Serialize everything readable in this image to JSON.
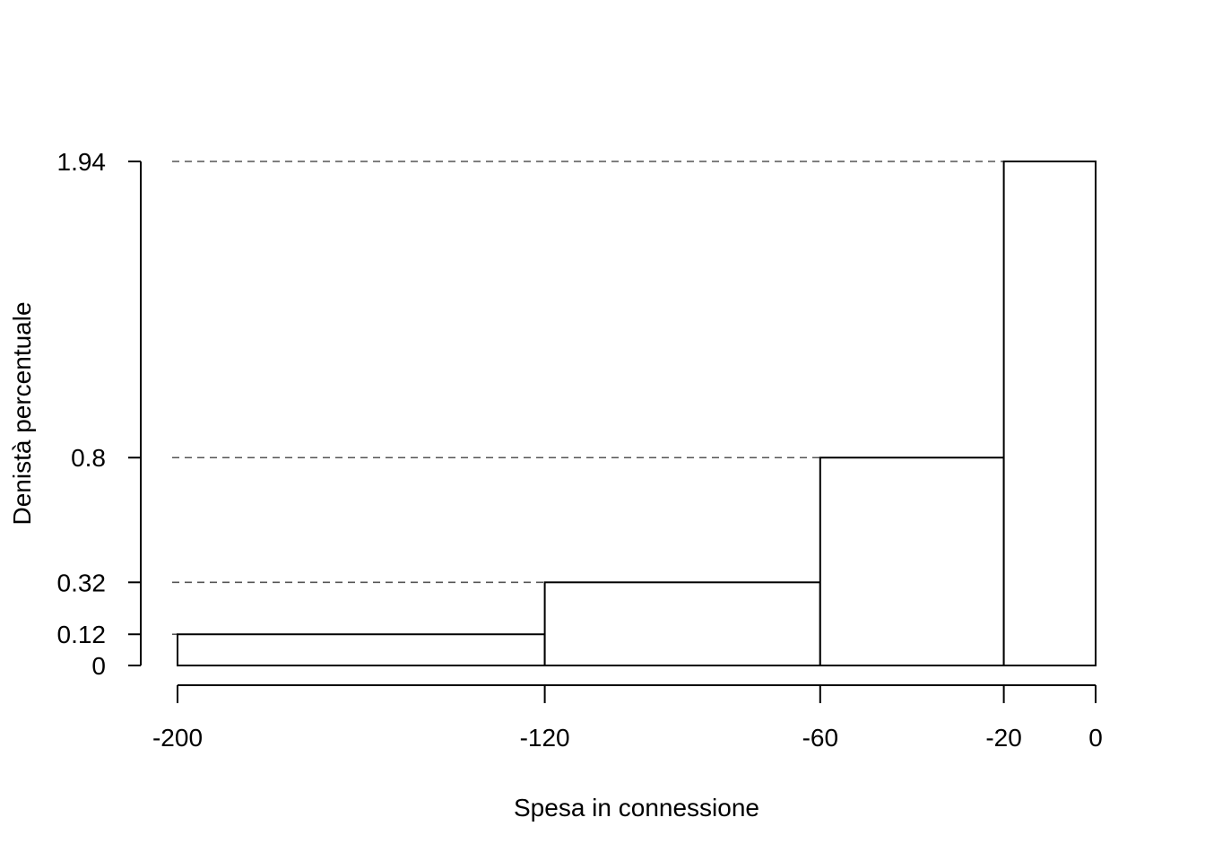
{
  "chart_data": {
    "type": "bar",
    "histogram": true,
    "title": "",
    "xlabel": "Spesa in connessione",
    "ylabel": "Denistà percentuale",
    "bins": [
      {
        "from": -200,
        "to": -120,
        "density": 0.12
      },
      {
        "from": -120,
        "to": -60,
        "density": 0.32
      },
      {
        "from": -60,
        "to": -20,
        "density": 0.8
      },
      {
        "from": -20,
        "to": 0,
        "density": 1.94
      }
    ],
    "x_ticks": [
      {
        "value": -200,
        "label": "-200"
      },
      {
        "value": -120,
        "label": "-120"
      },
      {
        "value": -60,
        "label": "-60"
      },
      {
        "value": -20,
        "label": "-20"
      },
      {
        "value": 0,
        "label": "0"
      }
    ],
    "y_ticks": [
      {
        "value": 0,
        "label": "0"
      },
      {
        "value": 0.12,
        "label": "0.12"
      },
      {
        "value": 0.32,
        "label": "0.32"
      },
      {
        "value": 0.8,
        "label": "0.8"
      },
      {
        "value": 1.94,
        "label": "1.94"
      }
    ],
    "xlim": [
      -200,
      0
    ],
    "ylim": [
      0,
      1.94
    ],
    "guide_lines": "dashed",
    "grid": false,
    "legend": "none",
    "colors": {
      "bar_fill": "#ffffff",
      "bar_stroke": "#000000",
      "guide": "#555555"
    }
  }
}
